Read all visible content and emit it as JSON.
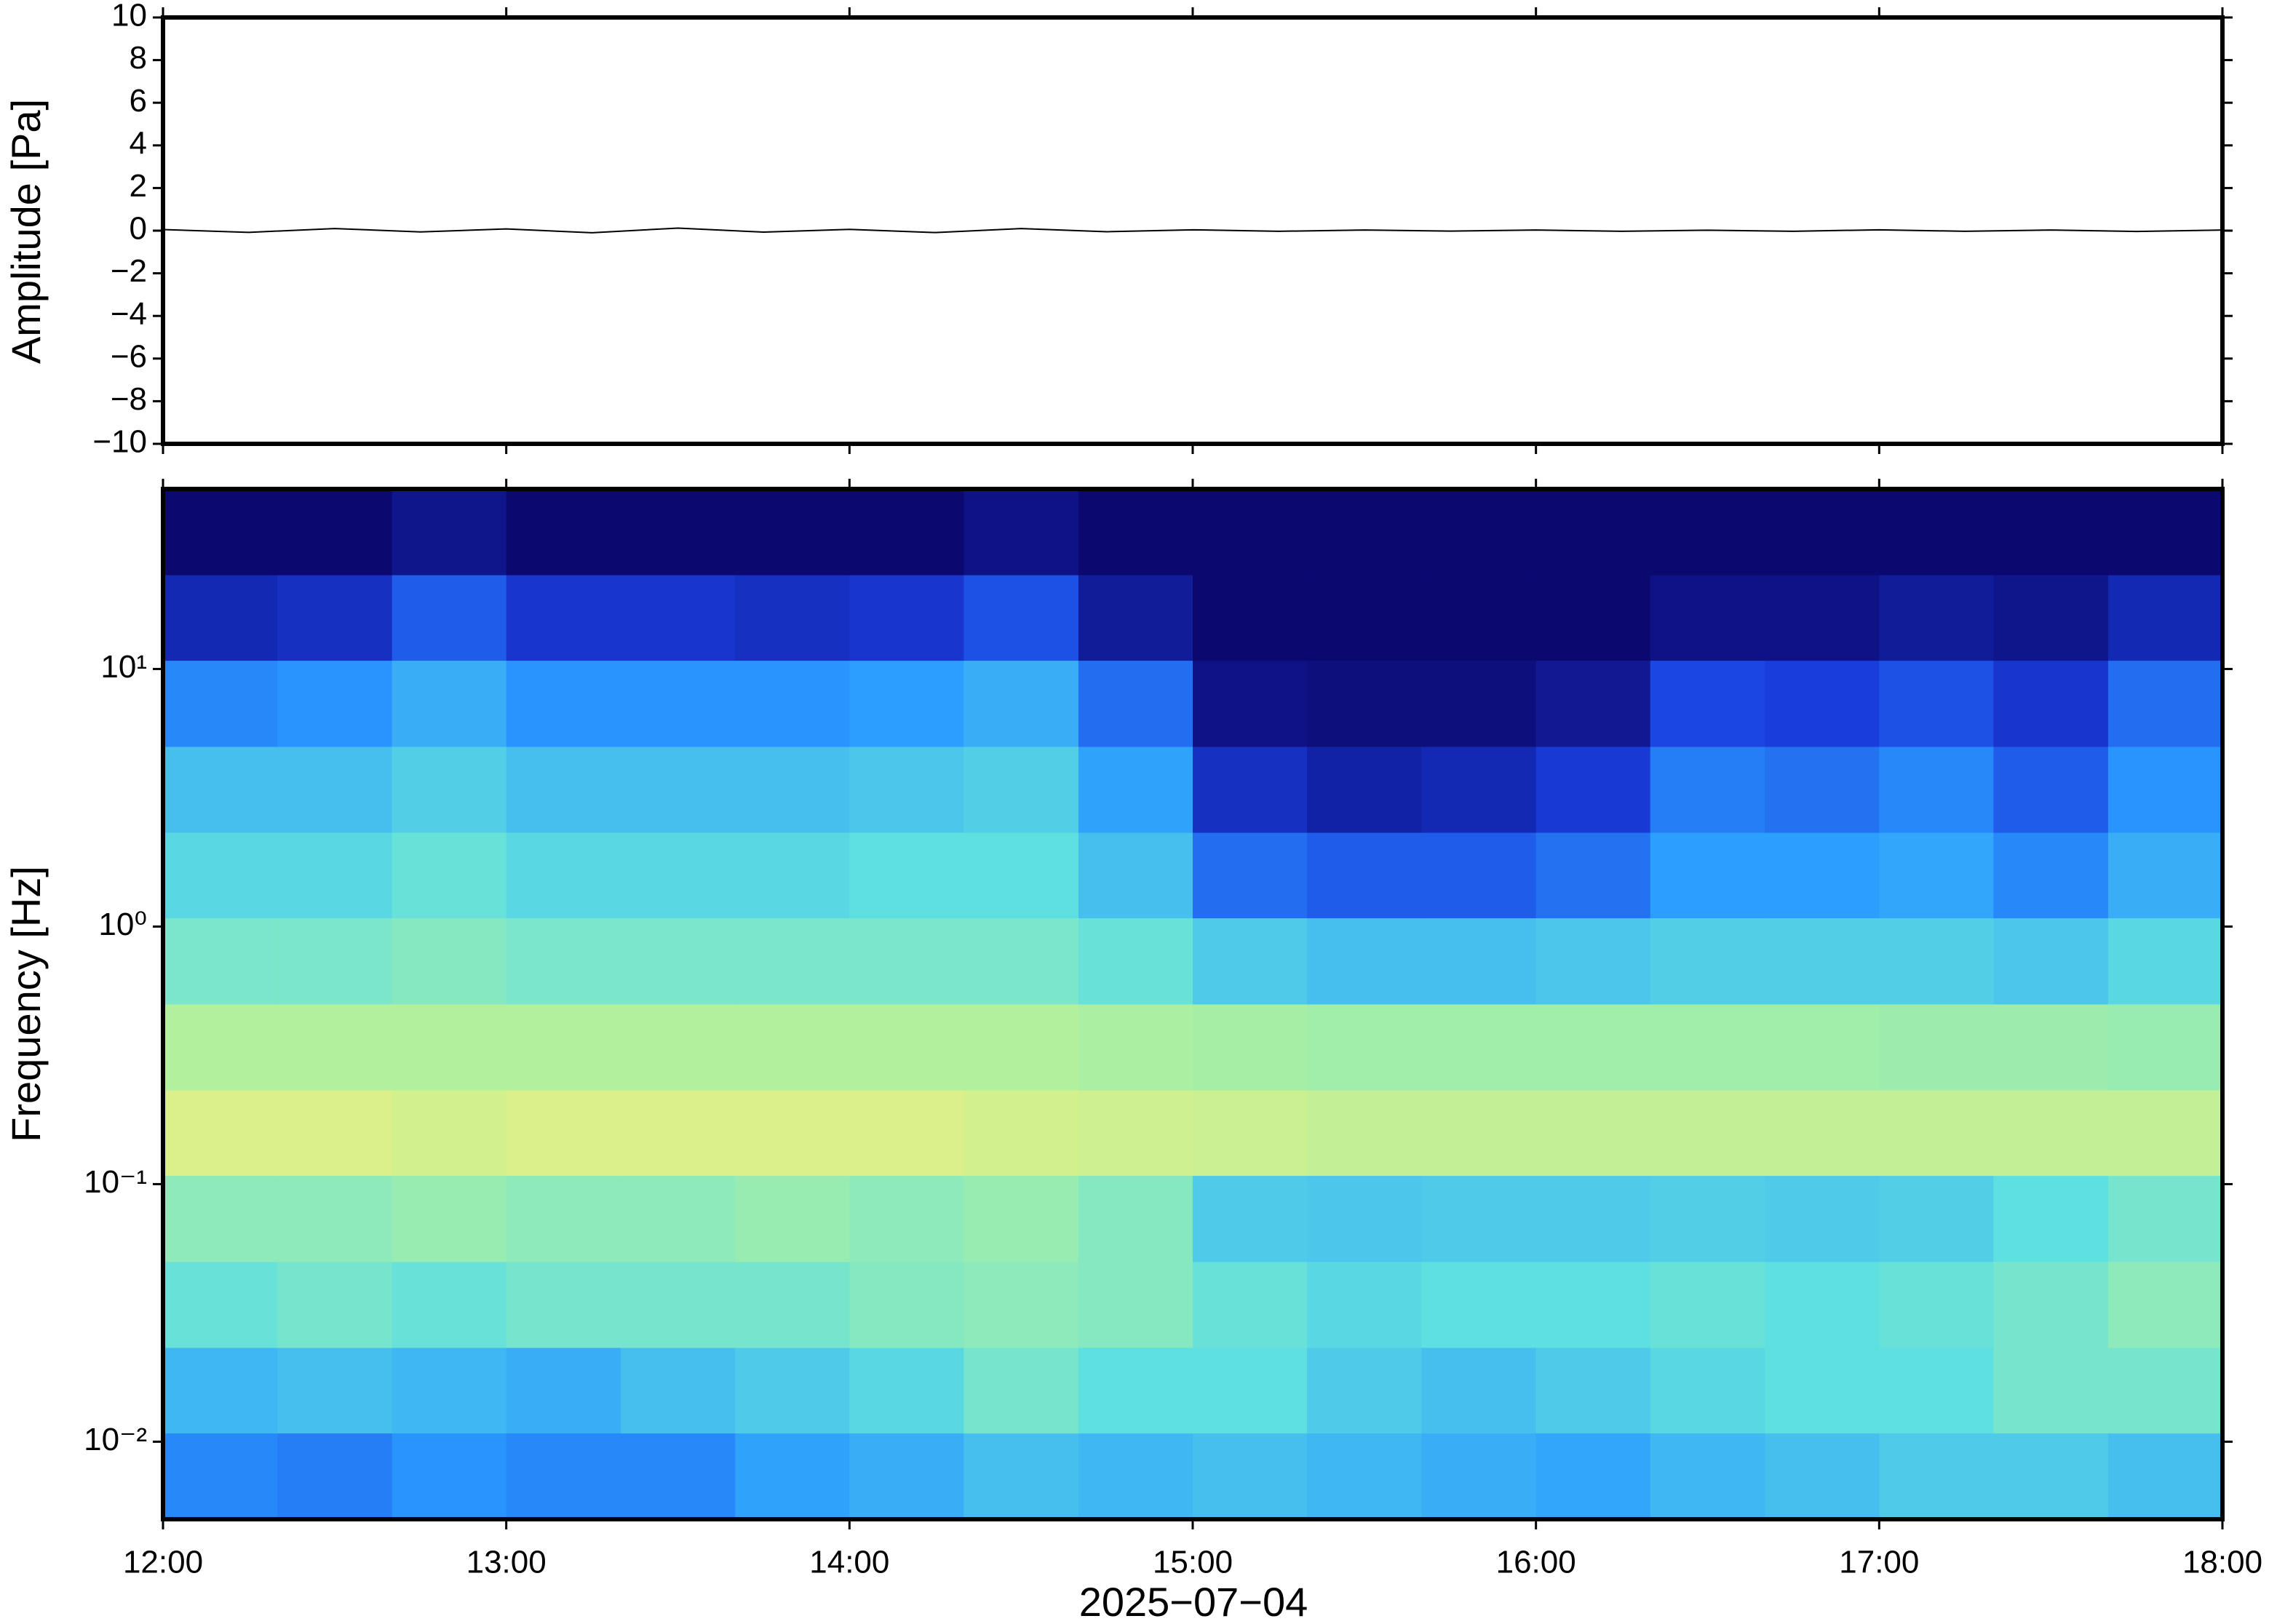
{
  "chart_data": [
    {
      "type": "line",
      "ylabel": "Amplitude [Pa]",
      "color": "#000000",
      "x": [
        12,
        12.25,
        12.5,
        12.75,
        13,
        13.25,
        13.5,
        13.75,
        14,
        14.25,
        14.5,
        14.75,
        15,
        15.25,
        15.5,
        15.75,
        16,
        16.25,
        16.5,
        16.75,
        17,
        17.25,
        17.5,
        17.75,
        18
      ],
      "values": [
        0.05,
        -0.08,
        0.1,
        -0.06,
        0.08,
        -0.1,
        0.12,
        -0.07,
        0.06,
        -0.09,
        0.1,
        -0.05,
        0.04,
        -0.03,
        0.03,
        -0.02,
        0.03,
        -0.03,
        0.02,
        -0.03,
        0.04,
        -0.03,
        0.03,
        -0.04,
        0.03
      ],
      "xlim": [
        12,
        18
      ],
      "ylim": [
        -10,
        10
      ],
      "yticks": [
        {
          "value": -10,
          "label": "−10"
        },
        {
          "value": -8,
          "label": "−8"
        },
        {
          "value": -6,
          "label": "−6"
        },
        {
          "value": -4,
          "label": "−4"
        },
        {
          "value": -2,
          "label": "−2"
        },
        0,
        2,
        4,
        6,
        8,
        10
      ]
    },
    {
      "type": "heatmap",
      "ylabel": "Frequency [Hz]",
      "xlabel": "2025−07−04",
      "ylog": true,
      "xlim": [
        12,
        18
      ],
      "ylim": [
        0.005,
        50
      ],
      "xticks": [
        {
          "value": 12,
          "label": "12:00"
        },
        {
          "value": 13,
          "label": "13:00"
        },
        {
          "value": 14,
          "label": "14:00"
        },
        {
          "value": 15,
          "label": "15:00"
        },
        {
          "value": 16,
          "label": "16:00"
        },
        {
          "value": 17,
          "label": "17:00"
        },
        {
          "value": 18,
          "label": "18:00"
        }
      ],
      "yticks": [
        {
          "value": 0.01,
          "label": "10⁻²"
        },
        {
          "value": 0.1,
          "label": "10⁻¹"
        },
        {
          "value": 1,
          "label": "10⁰"
        },
        {
          "value": 10,
          "label": "10¹"
        }
      ],
      "zlim": [
        0,
        1
      ],
      "colormap": [
        "#0b0870",
        "#1a3fe0",
        "#2a9bff",
        "#5fe0e0",
        "#aef0a0",
        "#f0f080",
        "#ffa050"
      ],
      "xbins": [
        12,
        12.333,
        12.667,
        13,
        13.333,
        13.667,
        14,
        14.333,
        14.667,
        15,
        15.333,
        15.667,
        16,
        16.333,
        16.667,
        17,
        17.333,
        17.667,
        18
      ],
      "ybins": [
        0.005,
        0.0108,
        0.0232,
        0.05,
        0.108,
        0.232,
        0.5,
        1.08,
        2.32,
        5,
        10.8,
        23.2,
        50
      ],
      "values": [
        [
          0.3,
          0.28,
          0.32,
          0.3,
          0.3,
          0.35,
          0.38,
          0.42,
          0.4,
          0.42,
          0.4,
          0.38,
          0.36,
          0.4,
          0.42,
          0.45,
          0.45,
          0.42
        ],
        [
          0.4,
          0.42,
          0.4,
          0.38,
          0.42,
          0.45,
          0.48,
          0.55,
          0.5,
          0.5,
          0.45,
          0.42,
          0.45,
          0.48,
          0.5,
          0.5,
          0.55,
          0.55
        ],
        [
          0.52,
          0.55,
          0.52,
          0.55,
          0.55,
          0.55,
          0.58,
          0.6,
          0.58,
          0.52,
          0.48,
          0.5,
          0.5,
          0.52,
          0.5,
          0.52,
          0.55,
          0.6
        ],
        [
          0.6,
          0.6,
          0.62,
          0.6,
          0.6,
          0.62,
          0.6,
          0.62,
          0.58,
          0.45,
          0.44,
          0.45,
          0.45,
          0.46,
          0.45,
          0.46,
          0.5,
          0.55
        ],
        [
          0.78,
          0.78,
          0.76,
          0.78,
          0.78,
          0.78,
          0.78,
          0.76,
          0.75,
          0.74,
          0.72,
          0.72,
          0.72,
          0.72,
          0.72,
          0.72,
          0.72,
          0.72
        ],
        [
          0.68,
          0.68,
          0.68,
          0.68,
          0.68,
          0.68,
          0.68,
          0.68,
          0.66,
          0.65,
          0.64,
          0.64,
          0.64,
          0.64,
          0.64,
          0.63,
          0.63,
          0.62
        ],
        [
          0.56,
          0.56,
          0.58,
          0.56,
          0.56,
          0.56,
          0.56,
          0.56,
          0.52,
          0.45,
          0.42,
          0.42,
          0.44,
          0.46,
          0.46,
          0.46,
          0.44,
          0.48
        ],
        [
          0.48,
          0.48,
          0.52,
          0.48,
          0.48,
          0.48,
          0.5,
          0.5,
          0.42,
          0.25,
          0.22,
          0.22,
          0.26,
          0.34,
          0.34,
          0.36,
          0.3,
          0.38
        ],
        [
          0.42,
          0.42,
          0.46,
          0.42,
          0.42,
          0.42,
          0.44,
          0.46,
          0.35,
          0.12,
          0.08,
          0.1,
          0.15,
          0.28,
          0.26,
          0.3,
          0.22,
          0.32
        ],
        [
          0.3,
          0.32,
          0.38,
          0.32,
          0.32,
          0.32,
          0.34,
          0.38,
          0.25,
          0.03,
          0.02,
          0.02,
          0.05,
          0.18,
          0.16,
          0.2,
          0.14,
          0.25
        ],
        [
          0.1,
          0.12,
          0.22,
          0.14,
          0.14,
          0.12,
          0.14,
          0.2,
          0.06,
          0,
          0,
          0,
          0,
          0.03,
          0.03,
          0.06,
          0.04,
          0.1
        ],
        [
          0,
          0,
          0.04,
          0,
          0,
          0,
          0,
          0.03,
          0,
          0,
          0,
          0,
          0,
          0,
          0,
          0,
          0,
          0
        ]
      ]
    }
  ]
}
